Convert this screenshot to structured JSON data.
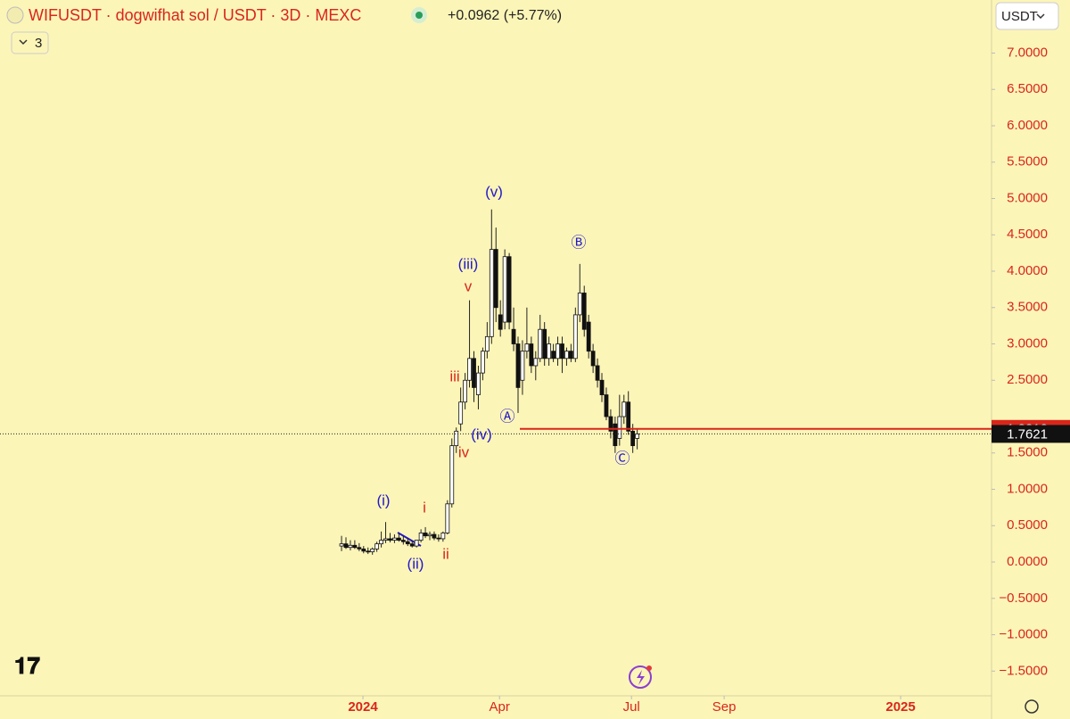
{
  "header": {
    "symbol": "WIFUSDT · dogwifhat sol / USDT · 3D · MEXC",
    "change": "+0.0962 (+5.77%)",
    "indicator_count": "3",
    "currency": "USDT"
  },
  "chart_data": {
    "type": "candlestick",
    "color_up": "#ffffff",
    "color_down": "#111111",
    "wick_color": "#222222",
    "open": [
      0.22,
      0.25,
      0.2,
      0.23,
      0.2,
      0.18,
      0.15,
      0.14,
      0.18,
      0.25,
      0.3,
      0.32,
      0.3,
      0.33,
      0.3,
      0.28,
      0.25,
      0.22,
      0.3,
      0.4,
      0.36,
      0.38,
      0.33,
      0.32,
      0.4,
      0.8,
      1.6,
      1.9,
      2.2,
      2.5,
      2.8,
      2.3,
      2.6,
      2.9,
      3.1,
      4.3,
      3.4,
      3.3,
      4.2,
      3.2,
      3.0,
      2.5,
      2.9,
      3.0,
      2.7,
      2.8,
      3.2,
      2.8,
      2.9,
      2.8,
      3.0,
      2.8,
      2.9,
      2.8,
      3.4,
      3.7,
      3.3,
      2.9,
      2.7,
      2.5,
      2.3,
      2.0,
      1.9,
      1.7,
      2.0,
      2.2,
      1.8,
      1.7
    ],
    "high": [
      0.36,
      0.34,
      0.3,
      0.3,
      0.26,
      0.22,
      0.2,
      0.2,
      0.28,
      0.42,
      0.55,
      0.4,
      0.38,
      0.4,
      0.36,
      0.33,
      0.3,
      0.3,
      0.45,
      0.48,
      0.42,
      0.42,
      0.38,
      0.42,
      0.85,
      1.7,
      1.85,
      2.4,
      2.6,
      3.6,
      2.9,
      2.7,
      2.95,
      3.3,
      4.85,
      4.6,
      3.6,
      4.3,
      4.25,
      3.5,
      3.1,
      3.05,
      3.5,
      3.1,
      2.9,
      3.4,
      3.3,
      3.1,
      3.0,
      3.1,
      3.1,
      2.95,
      3.0,
      3.5,
      4.1,
      3.8,
      3.4,
      3.0,
      2.8,
      2.6,
      2.4,
      2.1,
      2.0,
      2.3,
      2.3,
      2.35,
      1.9,
      1.83
    ],
    "low": [
      0.15,
      0.18,
      0.16,
      0.18,
      0.15,
      0.12,
      0.11,
      0.1,
      0.14,
      0.2,
      0.26,
      0.27,
      0.26,
      0.28,
      0.24,
      0.22,
      0.2,
      0.2,
      0.27,
      0.33,
      0.3,
      0.3,
      0.28,
      0.28,
      0.38,
      0.75,
      1.5,
      1.8,
      2.1,
      2.4,
      2.2,
      2.1,
      2.5,
      2.8,
      3.0,
      3.3,
      3.1,
      3.2,
      3.2,
      2.9,
      2.05,
      2.3,
      2.8,
      2.6,
      2.5,
      2.75,
      2.7,
      2.7,
      2.75,
      2.7,
      2.6,
      2.7,
      2.75,
      2.75,
      3.3,
      3.1,
      2.8,
      2.6,
      2.4,
      2.2,
      1.95,
      1.7,
      1.5,
      1.6,
      1.9,
      1.75,
      1.5,
      1.55
    ],
    "close": [
      0.25,
      0.2,
      0.23,
      0.2,
      0.18,
      0.15,
      0.14,
      0.18,
      0.25,
      0.3,
      0.32,
      0.3,
      0.33,
      0.3,
      0.28,
      0.25,
      0.22,
      0.3,
      0.4,
      0.36,
      0.38,
      0.33,
      0.32,
      0.4,
      0.8,
      1.6,
      1.8,
      2.2,
      2.5,
      2.8,
      2.4,
      2.6,
      2.9,
      3.1,
      4.3,
      3.5,
      3.2,
      4.2,
      3.3,
      3.0,
      2.4,
      2.9,
      3.0,
      2.7,
      2.8,
      3.2,
      2.8,
      3.0,
      2.8,
      3.0,
      2.8,
      2.9,
      2.8,
      3.4,
      3.7,
      3.2,
      2.9,
      2.7,
      2.5,
      2.3,
      2.0,
      1.8,
      1.6,
      2.0,
      2.2,
      1.8,
      1.6,
      1.7621
    ],
    "ylim": [
      -1.84,
      7.73
    ],
    "yticks": [
      {
        "value": 7,
        "label": "7.0000"
      },
      {
        "value": 6.5,
        "label": "6.5000"
      },
      {
        "value": 6,
        "label": "6.0000"
      },
      {
        "value": 5.5,
        "label": "5.5000"
      },
      {
        "value": 5,
        "label": "5.0000"
      },
      {
        "value": 4.5,
        "label": "4.5000"
      },
      {
        "value": 4,
        "label": "4.0000"
      },
      {
        "value": 3.5,
        "label": "3.5000"
      },
      {
        "value": 3,
        "label": "3.0000"
      },
      {
        "value": 2.5,
        "label": "2.5000"
      },
      {
        "value": 1.5,
        "label": "1.5000"
      },
      {
        "value": 1,
        "label": "1.0000"
      },
      {
        "value": 0.5,
        "label": "0.5000"
      },
      {
        "value": 0,
        "label": "0.0000"
      },
      {
        "value": -0.5,
        "label": "−0.5000"
      },
      {
        "value": -1,
        "label": "−1.0000"
      },
      {
        "value": -1.5,
        "label": "−1.5000"
      }
    ],
    "xlim": [
      -77.4,
      147.3
    ],
    "xticks": [
      {
        "value": 4.85,
        "label": "2024"
      },
      {
        "value": 35.8,
        "label": "Apr"
      },
      {
        "value": 65.7,
        "label": "Jul"
      },
      {
        "value": 86.7,
        "label": "Sep"
      },
      {
        "value": 126.7,
        "label": "2025"
      }
    ],
    "level_line": {
      "value": 1.8312,
      "color": "#d9261c"
    },
    "last_price": 1.7621,
    "annotations": [
      {
        "text": "(v)",
        "color": "#2218c8"
      },
      {
        "text": "(iii)",
        "color": "#2218c8"
      },
      {
        "text": "v",
        "color": "#d9261c"
      },
      {
        "text": "iii",
        "color": "#d9261c"
      },
      {
        "text": "(iv)",
        "color": "#2218c8"
      },
      {
        "text": "iv",
        "color": "#d9261c"
      },
      {
        "text": "(i)",
        "color": "#2218c8"
      },
      {
        "text": "i",
        "color": "#d9261c"
      },
      {
        "text": "(ii)",
        "color": "#2218c8"
      },
      {
        "text": "ii",
        "color": "#d9261c"
      },
      {
        "text": "Ⓐ",
        "color": "#2218c8"
      },
      {
        "text": "Ⓑ",
        "color": "#2218c8"
      },
      {
        "text": "Ⓒ",
        "color": "#2218c8"
      }
    ]
  }
}
